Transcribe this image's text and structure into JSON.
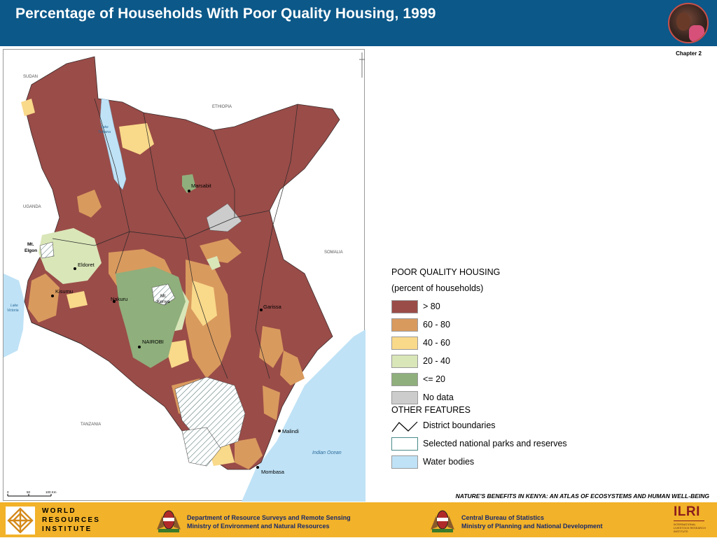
{
  "header": {
    "title": "Percentage of Households With Poor Quality Housing, 1999"
  },
  "chapter_label": "Chapter 2",
  "map": {
    "countries": [
      "SUDAN",
      "ETHIOPIA",
      "UGANDA",
      "SOMALIA",
      "TANZANIA"
    ],
    "mountains": [
      "Mt.",
      "Elgon",
      "Mt.",
      "Kenya"
    ],
    "lakes": [
      "Lake",
      "Turkana",
      "Lake",
      "Victoria"
    ],
    "ocean": "Indian Ocean",
    "towns": [
      "Marsabit",
      "Eldoret",
      "Kisumu",
      "Nakuru",
      "NAIROBI",
      "Garissa",
      "Malindi",
      "Mombasa"
    ],
    "scalebar": {
      "ticks": [
        "0",
        "50",
        "100 Km"
      ]
    }
  },
  "legend": {
    "title": "POOR QUALITY HOUSING",
    "subtitle": "(percent of households)",
    "classes": [
      {
        "label": "> 80",
        "color": "#9a4c48"
      },
      {
        "label": "60 - 80",
        "color": "#d99a5e"
      },
      {
        "label": "40 - 60",
        "color": "#f9d98a"
      },
      {
        "label": "20 - 40",
        "color": "#d9e6b8"
      },
      {
        "label": "<= 20",
        "color": "#8faf7c"
      },
      {
        "label": "No data",
        "color": "#cccccc"
      }
    ],
    "other_title": "OTHER FEATURES",
    "other": [
      {
        "label": "District boundaries"
      },
      {
        "label": "Selected national parks and reserves"
      },
      {
        "label": "Water bodies",
        "color": "#bfe2f6"
      }
    ]
  },
  "book_title": "NATURE'S BENEFITS IN KENYA: AN ATLAS OF ECOSYSTEMS AND HUMAN WELL-BEING",
  "footer": {
    "wri": [
      "WORLD",
      "RESOURCES",
      "INSTITUTE"
    ],
    "dept1": [
      "Department of Resource Surveys and Remote Sensing",
      "Ministry of Environment and Natural Resources"
    ],
    "dept2": [
      "Central Bureau of Statistics",
      "Ministry of Planning and National Development"
    ],
    "ilri": {
      "big": "ILRI",
      "small": [
        "INTERNATIONAL",
        "LIVESTOCK RESEARCH",
        "INSTITUTE"
      ]
    }
  },
  "colors": {
    "header_bg": "#0b5889",
    "footer_bg": "#f2b229",
    "water": "#bfe2f6"
  }
}
